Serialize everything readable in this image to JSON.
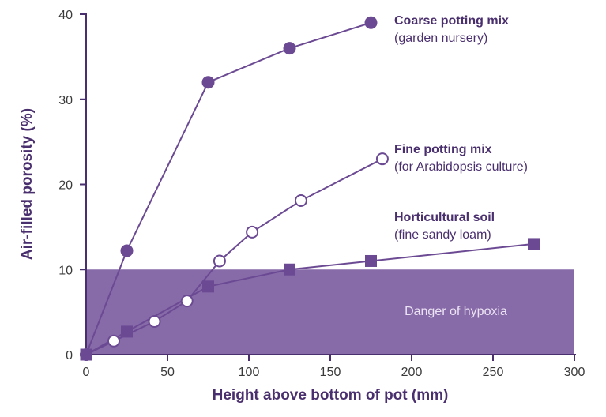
{
  "chart_data": {
    "type": "line",
    "title": "",
    "xlabel": "Height above bottom of pot (mm)",
    "ylabel": "Air-filled porosity (%)",
    "xlim": [
      0,
      300
    ],
    "ylim": [
      0,
      40
    ],
    "xticks": [
      0,
      50,
      100,
      150,
      200,
      250,
      300
    ],
    "yticks": [
      0,
      10,
      20,
      30,
      40
    ],
    "grid": false,
    "legend": "direct labels beside series ends",
    "accent_color": "#6b4a93",
    "band": {
      "label": "Danger of hypoxia",
      "ymin": 0,
      "ymax": 10,
      "xmin": 0,
      "xmax": 300,
      "color": "#876aa8"
    },
    "series": [
      {
        "name": "Coarse potting mix",
        "subtitle": "(garden nursery)",
        "marker": "circle-filled",
        "x": [
          0,
          25,
          75,
          125,
          175
        ],
        "y": [
          0,
          12.2,
          32,
          36,
          39
        ]
      },
      {
        "name": "Fine potting mix",
        "subtitle": "(for Arabidopsis culture)",
        "marker": "circle-open",
        "x": [
          0,
          17,
          42,
          62,
          82,
          102,
          132,
          182
        ],
        "y": [
          0,
          1.6,
          3.9,
          6.3,
          11,
          14.4,
          18.1,
          23
        ]
      },
      {
        "name": "Horticultural soil",
        "subtitle": "(fine sandy loam)",
        "marker": "square-filled",
        "x": [
          0,
          25,
          75,
          125,
          175,
          275
        ],
        "y": [
          0,
          2.7,
          8,
          10,
          11,
          13
        ]
      }
    ]
  }
}
